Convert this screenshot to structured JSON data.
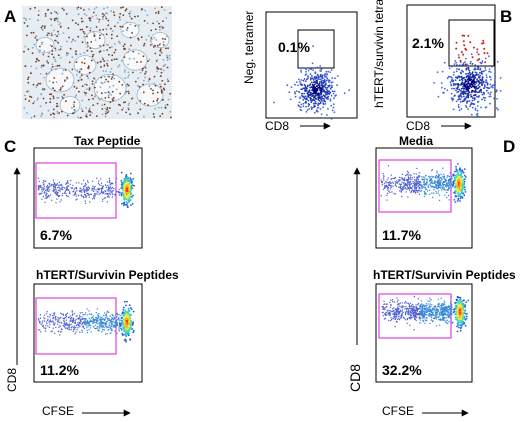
{
  "figure": {
    "panel_labels": {
      "A": "A",
      "B": "B",
      "C": "C",
      "D": "D"
    }
  },
  "chart_data": [
    {
      "panel": "A",
      "type": "other",
      "description_free": true,
      "image_colors": {
        "background": "#e3ecf1",
        "stain": "#7a3b20",
        "nuclei": "#8aa6c2"
      }
    },
    {
      "panel": "B",
      "type": "scatter",
      "xlabel": "CD8",
      "ylabel": "Neg. tetramer",
      "gate_percent": "0.1%",
      "gate_color": "#000000",
      "cluster_color": "#1a2ea0"
    },
    {
      "panel": "B",
      "type": "scatter",
      "xlabel": "CD8",
      "ylabel": "hTERT/survivin tetramers",
      "gate_percent": "2.1%",
      "gate_color": "#000000",
      "cluster_color": "#1a2ea0",
      "positive_event_color": "#cc2020"
    },
    {
      "panel": "C",
      "type": "scatter",
      "title": "Tax Peptide",
      "gate_percent": "6.7%",
      "gate_color": "#e040e0"
    },
    {
      "panel": "C",
      "type": "scatter",
      "title": "hTERT/Survivin Peptides",
      "gate_percent": "11.2%",
      "gate_color": "#e040e0",
      "xlabel": "CFSE",
      "ylabel": "CD8"
    },
    {
      "panel": "D",
      "type": "scatter",
      "title": "Media",
      "gate_percent": "11.7%",
      "gate_color": "#e040e0"
    },
    {
      "panel": "D",
      "type": "scatter",
      "title": "hTERT/Survivin  Peptides",
      "gate_percent": "32.2%",
      "gate_color": "#e040e0",
      "xlabel": "CFSE",
      "ylabel": "CD8"
    }
  ]
}
